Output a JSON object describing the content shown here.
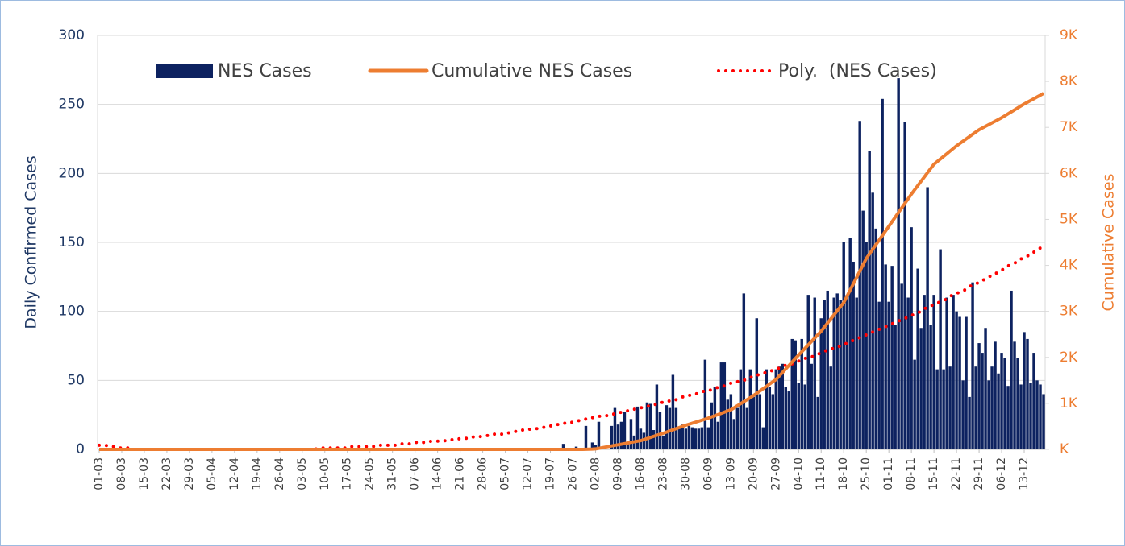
{
  "chart_data": {
    "type": "bar",
    "y_label": "Daily Confirmed Cases",
    "y2_label": "Cumulative Cases",
    "ylim": [
      0,
      300
    ],
    "yticks": [
      0,
      50,
      100,
      150,
      200,
      250,
      300
    ],
    "y2lim": [
      0,
      9000
    ],
    "y2ticks": [
      {
        "value": 0,
        "label": "K"
      },
      {
        "value": 1000,
        "label": "1K"
      },
      {
        "value": 2000,
        "label": "2K"
      },
      {
        "value": 3000,
        "label": "3K"
      },
      {
        "value": 4000,
        "label": "4K"
      },
      {
        "value": 5000,
        "label": "5K"
      },
      {
        "value": 6000,
        "label": "6K"
      },
      {
        "value": 7000,
        "label": "7K"
      },
      {
        "value": 8000,
        "label": "8K"
      },
      {
        "value": 9000,
        "label": "9K"
      }
    ],
    "grid": true,
    "legend": "top",
    "categories": [
      "01-03",
      null,
      null,
      null,
      null,
      null,
      null,
      "08-03",
      null,
      null,
      null,
      null,
      null,
      null,
      "15-03",
      null,
      null,
      null,
      null,
      null,
      null,
      "22-03",
      null,
      null,
      null,
      null,
      null,
      null,
      "29-03",
      null,
      null,
      null,
      null,
      null,
      null,
      "05-04",
      null,
      null,
      null,
      null,
      null,
      null,
      "12-04",
      null,
      null,
      null,
      null,
      null,
      null,
      "19-04",
      null,
      null,
      null,
      null,
      null,
      null,
      "26-04",
      null,
      null,
      null,
      null,
      null,
      null,
      "03-05",
      null,
      null,
      null,
      null,
      null,
      null,
      "10-05",
      null,
      null,
      null,
      null,
      null,
      null,
      "17-05",
      null,
      null,
      null,
      null,
      null,
      null,
      "24-05",
      null,
      null,
      null,
      null,
      null,
      null,
      "31-05",
      null,
      null,
      null,
      null,
      null,
      null,
      "07-06",
      null,
      null,
      null,
      null,
      null,
      null,
      "14-06",
      null,
      null,
      null,
      null,
      null,
      null,
      "21-06",
      null,
      null,
      null,
      null,
      null,
      null,
      "28-06",
      null,
      null,
      null,
      null,
      null,
      null,
      "05-07",
      null,
      null,
      null,
      null,
      null,
      null,
      "12-07",
      null,
      null,
      null,
      null,
      null,
      null,
      "19-07",
      null,
      null,
      null,
      null,
      null,
      null,
      "26-07",
      null,
      null,
      null,
      null,
      null,
      null,
      "02-08",
      null,
      null,
      null,
      null,
      null,
      null,
      "09-08",
      null,
      null,
      null,
      null,
      null,
      null,
      "16-08",
      null,
      null,
      null,
      null,
      null,
      null,
      "23-08",
      null,
      null,
      null,
      null,
      null,
      null,
      "30-08",
      null,
      null,
      null,
      null,
      null,
      null,
      "06-09",
      null,
      null,
      null,
      null,
      null,
      null,
      "13-09",
      null,
      null,
      null,
      null,
      null,
      null,
      "20-09",
      null,
      null,
      null,
      null,
      null,
      null,
      "27-09",
      null,
      null,
      null,
      null,
      null,
      null,
      "04-10",
      null,
      null,
      null,
      null,
      null,
      null,
      "11-10",
      null,
      null,
      null,
      null,
      null,
      null,
      "18-10",
      null,
      null,
      null,
      null,
      null,
      null,
      "25-10",
      null,
      null,
      null,
      null,
      null,
      null,
      "01-11",
      null,
      null,
      null,
      null,
      null,
      null,
      "08-11",
      null,
      null,
      null,
      null,
      null,
      null,
      "15-11",
      null,
      null,
      null,
      null,
      null,
      null,
      "22-11",
      null,
      null,
      null,
      null,
      null,
      null,
      "29-11",
      null,
      null,
      null,
      null,
      null,
      null,
      "06-12",
      null,
      null,
      null,
      null,
      null,
      null,
      "13-12",
      null,
      null,
      null,
      null,
      null,
      null
    ],
    "series": [
      {
        "name": "NES Cases",
        "type": "bar",
        "color": "#0d2260",
        "values": [
          0,
          0,
          0,
          0,
          0,
          0,
          0,
          0,
          0,
          0,
          0,
          0,
          0,
          0,
          0,
          0,
          0,
          0,
          0,
          0,
          0,
          0,
          0,
          0,
          0,
          0,
          0,
          0,
          0,
          0,
          0,
          0,
          0,
          0,
          0,
          0,
          0,
          0,
          0,
          0,
          0,
          0,
          0,
          0,
          0,
          0,
          0,
          0,
          0,
          0,
          0,
          0,
          0,
          0,
          0,
          0,
          0,
          0,
          0,
          0,
          0,
          0,
          0,
          0,
          0,
          0,
          0,
          0,
          0,
          0,
          0,
          0,
          0,
          0,
          0,
          0,
          0,
          0,
          0,
          0,
          0,
          0,
          0,
          0,
          0,
          0,
          0,
          0,
          0,
          0,
          0,
          0,
          0,
          0,
          0,
          0,
          0,
          0,
          0,
          0,
          0,
          0,
          0,
          0,
          0,
          0,
          0,
          0,
          0,
          0,
          0,
          0,
          0,
          0,
          0,
          0,
          0,
          0,
          0,
          0,
          0,
          0,
          0,
          0,
          0,
          0,
          0,
          0,
          0,
          0,
          0,
          0,
          0,
          0,
          0,
          0,
          0,
          0,
          0,
          0,
          0,
          0,
          0,
          0,
          4,
          0,
          0,
          0,
          2,
          0,
          0,
          17,
          0,
          5,
          3,
          20,
          0,
          0,
          0,
          17,
          30,
          18,
          20,
          27,
          5,
          22,
          10,
          31,
          15,
          12,
          34,
          33,
          14,
          47,
          27,
          10,
          32,
          30,
          54,
          30,
          15,
          18,
          15,
          17,
          16,
          15,
          15,
          16,
          65,
          16,
          34,
          45,
          20,
          63,
          63,
          36,
          40,
          22,
          30,
          58,
          113,
          30,
          58,
          38,
          95,
          40,
          16,
          58,
          45,
          40,
          58,
          60,
          62,
          45,
          42,
          80,
          79,
          48,
          80,
          47,
          112,
          62,
          110,
          38,
          95,
          108,
          115,
          60,
          110,
          113,
          108,
          150,
          112,
          153,
          136,
          110,
          238,
          173,
          150,
          216,
          186,
          160,
          107,
          254,
          134,
          107,
          133,
          90,
          269,
          120,
          237,
          110,
          161,
          65,
          131,
          88,
          112,
          190,
          90,
          112,
          58,
          145,
          58,
          110,
          60,
          112,
          100,
          96,
          50,
          96,
          38,
          121,
          60,
          77,
          70,
          88,
          50,
          60,
          78,
          55,
          70,
          66,
          46,
          115,
          78,
          66,
          47,
          85,
          80,
          48,
          70,
          50,
          47,
          40
        ]
      },
      {
        "name": "Cumulative NES Cases",
        "type": "line",
        "axis": "y2",
        "color": "#ed7d31",
        "values": [
          0,
          0,
          0,
          0,
          0,
          0,
          0,
          0,
          0,
          0,
          0,
          0,
          0,
          0,
          0,
          0,
          0,
          0,
          0,
          0,
          0,
          0,
          0,
          0,
          0,
          0,
          0,
          0,
          0,
          0,
          0,
          0,
          0,
          0,
          0,
          0,
          0,
          0,
          0,
          0,
          0,
          0,
          0,
          0,
          0,
          0,
          0,
          0,
          0,
          0,
          0,
          0,
          0,
          0,
          0,
          0,
          0,
          0,
          0,
          0,
          0,
          0,
          0,
          0,
          0,
          0,
          0,
          0,
          0,
          0,
          0,
          0,
          0,
          0,
          0,
          0,
          0,
          0,
          0,
          0,
          0,
          0,
          0,
          0,
          0,
          0,
          0,
          0,
          0,
          0,
          0,
          0,
          0,
          0,
          0,
          0,
          0,
          0,
          0,
          0,
          0,
          0,
          0,
          0,
          0,
          0,
          0,
          0,
          0,
          0,
          0,
          0,
          0,
          0,
          0,
          0,
          0,
          0,
          0,
          0,
          0,
          0,
          0,
          0,
          0,
          0,
          0,
          0,
          0,
          0,
          0,
          0,
          0,
          0,
          0,
          0,
          0,
          0,
          0,
          0,
          0,
          0,
          0,
          0,
          0,
          0,
          0,
          0,
          0,
          0,
          0,
          2,
          4,
          6,
          10,
          23,
          36,
          49,
          62,
          75,
          88,
          100,
          113,
          126,
          139,
          152,
          165,
          178,
          190,
          213,
          236,
          259,
          282,
          305,
          328,
          350,
          375,
          400,
          425,
          450,
          475,
          500,
          525,
          547,
          569,
          591,
          613,
          635,
          657,
          680,
          706,
          732,
          758,
          784,
          810,
          836,
          860,
          904,
          948,
          992,
          1036,
          1080,
          1124,
          1170,
          1220,
          1270,
          1320,
          1370,
          1420,
          1470,
          1520,
          1596,
          1672,
          1748,
          1824,
          1900,
          1976,
          2050,
          2124,
          2198,
          2272,
          2346,
          2420,
          2494,
          2570,
          2659,
          2748,
          2837,
          2926,
          3015,
          3104,
          3190,
          3327,
          3464,
          3601,
          3738,
          3875,
          4012,
          4150,
          4250,
          4350,
          4450,
          4550,
          4650,
          4750,
          4850,
          4950,
          5050,
          5150,
          5250,
          5350,
          5450,
          5550,
          5643,
          5736,
          5829,
          5922,
          6015,
          6108,
          6200,
          6257,
          6314,
          6371,
          6428,
          6485,
          6542,
          6600,
          6650,
          6700,
          6750,
          6800,
          6850,
          6900,
          6950,
          6987,
          7024,
          7061,
          7098,
          7135,
          7172,
          7210,
          7253,
          7296,
          7339,
          7382,
          7425,
          7468,
          7510,
          7548,
          7586,
          7624,
          7662,
          7700,
          7740
        ]
      },
      {
        "name": "Poly.  (NES Cases)",
        "type": "line",
        "dash": "dotted",
        "color": "#ff0000",
        "values": [
          3,
          3,
          3,
          2,
          2,
          2,
          1,
          1,
          1,
          1,
          1,
          0,
          0,
          0,
          0,
          0,
          0,
          0,
          0,
          0,
          0,
          0,
          0,
          0,
          0,
          0,
          0,
          0,
          0,
          0,
          0,
          0,
          0,
          0,
          0,
          0,
          0,
          0,
          0,
          0,
          0,
          0,
          0,
          0,
          0,
          0,
          0,
          0,
          0,
          0,
          0,
          0,
          0,
          0,
          0,
          0,
          0,
          0,
          0,
          0,
          0,
          0,
          0,
          0,
          0,
          0,
          0,
          0,
          1,
          1,
          1,
          1,
          1,
          1,
          1,
          1,
          1,
          1,
          2,
          2,
          2,
          2,
          2,
          2,
          2,
          2,
          3,
          3,
          3,
          3,
          3,
          3,
          3,
          4,
          4,
          4,
          4,
          4,
          5,
          5,
          5,
          5,
          5,
          6,
          6,
          6,
          6,
          6,
          7,
          7,
          7,
          7,
          8,
          8,
          8,
          9,
          9,
          9,
          9,
          10,
          10,
          10,
          11,
          11,
          11,
          11,
          12,
          12,
          12,
          13,
          13,
          14,
          14,
          14,
          15,
          15,
          15,
          16,
          16,
          16,
          17,
          17,
          18,
          18,
          19,
          19,
          19,
          20,
          20,
          21,
          21,
          22,
          22,
          23,
          23,
          24,
          24,
          24,
          25,
          25,
          26,
          26,
          27,
          27,
          28,
          29,
          29,
          30,
          30,
          31,
          31,
          32,
          32,
          33,
          34,
          34,
          35,
          35,
          36,
          36,
          37,
          38,
          38,
          39,
          40,
          40,
          41,
          42,
          42,
          43,
          43,
          44,
          45,
          46,
          46,
          47,
          48,
          48,
          49,
          50,
          50,
          51,
          52,
          53,
          54,
          54,
          55,
          56,
          57,
          57,
          58,
          59,
          60,
          61,
          61,
          62,
          63,
          64,
          65,
          66,
          66,
          67,
          68,
          69,
          70,
          71,
          72,
          73,
          73,
          74,
          75,
          76,
          77,
          78,
          79,
          80,
          81,
          82,
          83,
          84,
          85,
          86,
          87,
          88,
          89,
          90,
          91,
          92,
          93,
          94,
          95,
          96,
          97,
          98,
          99,
          100,
          102,
          103,
          104,
          105,
          106,
          107,
          108,
          109,
          111,
          112,
          113,
          114,
          115,
          116,
          118,
          119,
          120,
          121,
          122,
          124,
          125,
          126,
          127,
          129,
          130,
          131,
          133,
          134,
          135,
          136,
          138,
          139,
          140,
          142,
          143,
          144,
          146,
          147
        ]
      }
    ]
  }
}
